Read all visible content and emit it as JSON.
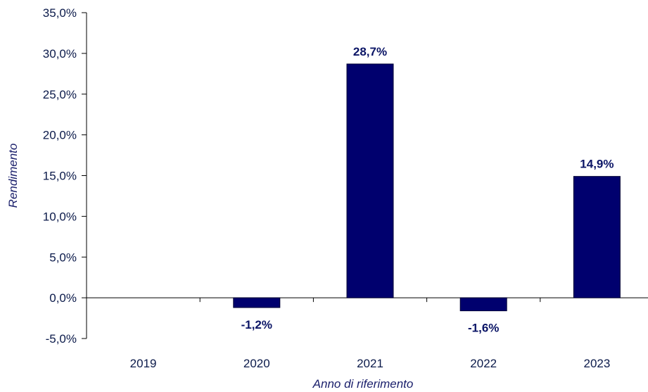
{
  "chart_data": {
    "type": "bar",
    "categories": [
      "2019",
      "2020",
      "2021",
      "2022",
      "2023"
    ],
    "values": [
      null,
      -1.2,
      28.7,
      -1.6,
      14.9
    ],
    "data_labels": [
      "",
      "-1,2%",
      "28,7%",
      "-1,6%",
      "14,9%"
    ],
    "y_ticks": [
      {
        "value": 35,
        "label": "35,0%"
      },
      {
        "value": 30,
        "label": "30,0%"
      },
      {
        "value": 25,
        "label": "25,0%"
      },
      {
        "value": 20,
        "label": "20,0%"
      },
      {
        "value": 15,
        "label": "15,0%"
      },
      {
        "value": 10,
        "label": "10,0%"
      },
      {
        "value": 5,
        "label": "5,0%"
      },
      {
        "value": 0,
        "label": "0,0%"
      },
      {
        "value": -5,
        "label": "-5,0%"
      }
    ],
    "ylim": [
      -5,
      35
    ],
    "xlabel": "Anno di riferimento",
    "ylabel": "Rendimento",
    "grid": false,
    "legend": "none",
    "colors": {
      "bar": "#00006e",
      "bar_stroke": "#000033",
      "axis": "#000000"
    }
  }
}
